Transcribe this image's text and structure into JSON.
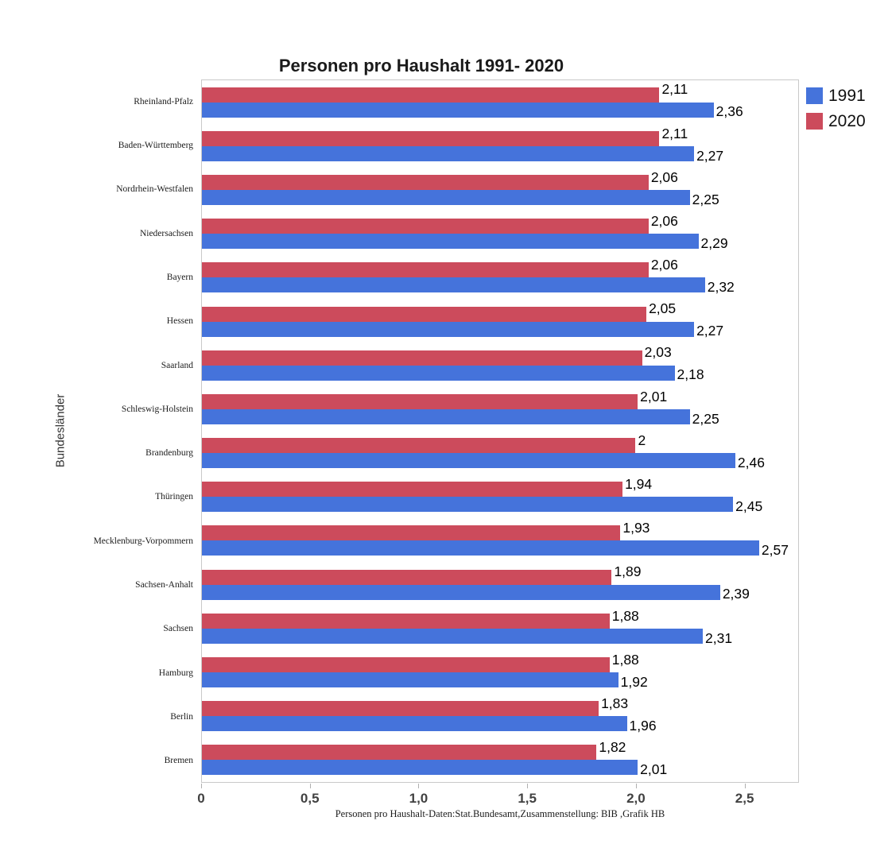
{
  "title": "Personen pro Haushalt 1991- 2020",
  "y_axis_label": "Bundesländer",
  "footnote": "Personen pro Haushalt-Daten:Stat.Bundesamt,Zusammenstellung: BIB ,Grafik HB",
  "colors": {
    "series_1991": "#4573DB",
    "series_2020": "#CC4B5C",
    "plot_border": "#c9c9c9",
    "tick": "#b0b0b0"
  },
  "chart_data": {
    "type": "bar",
    "orientation": "horizontal",
    "title": "Personen pro Haushalt 1991- 2020",
    "xlabel": "",
    "ylabel": "Bundesländer",
    "xlim": [
      0,
      2.75
    ],
    "grid": false,
    "legend_position": "top-right",
    "categories": [
      "Rheinland-Pfalz",
      "Baden-Württemberg",
      "Nordrhein-Westfalen",
      "Niedersachsen",
      "Bayern",
      "Hessen",
      "Saarland",
      "Schleswig-Holstein",
      "Brandenburg",
      "Thüringen",
      "Mecklenburg-Vorpommern",
      "Sachsen-Anhalt",
      "Sachsen",
      "Hamburg",
      "Berlin",
      "Bremen"
    ],
    "series": [
      {
        "name": "1991",
        "color": "#4573DB",
        "values": [
          2.36,
          2.27,
          2.25,
          2.29,
          2.32,
          2.27,
          2.18,
          2.25,
          2.46,
          2.45,
          2.57,
          2.39,
          2.31,
          1.92,
          1.96,
          2.01
        ],
        "labels": [
          "2,36",
          "2,27",
          "2,25",
          "2,29",
          "2,32",
          "2,27",
          "2,18",
          "2,25",
          "2,46",
          "2,45",
          "2,57",
          "2,39",
          "2,31",
          "1,92",
          "1,96",
          "2,01"
        ]
      },
      {
        "name": "2020",
        "color": "#CC4B5C",
        "values": [
          2.11,
          2.11,
          2.06,
          2.06,
          2.06,
          2.05,
          2.03,
          2.01,
          2.0,
          1.94,
          1.93,
          1.89,
          1.88,
          1.88,
          1.83,
          1.82
        ],
        "labels": [
          "2,11",
          "2,11",
          "2,06",
          "2,06",
          "2,06",
          "2,05",
          "2,03",
          "2,01",
          "2",
          "1,94",
          "1,93",
          "1,89",
          "1,88",
          "1,88",
          "1,83",
          "1,82"
        ]
      }
    ],
    "xticks": [
      {
        "value": 0,
        "label": "0"
      },
      {
        "value": 0.5,
        "label": "0,5"
      },
      {
        "value": 1.0,
        "label": "1,0"
      },
      {
        "value": 1.5,
        "label": "1,5"
      },
      {
        "value": 2.0,
        "label": "2,0"
      },
      {
        "value": 2.5,
        "label": "2,5"
      }
    ]
  },
  "legend": {
    "items": [
      {
        "label": "1991",
        "color": "#4573DB"
      },
      {
        "label": "2020",
        "color": "#CC4B5C"
      }
    ]
  }
}
